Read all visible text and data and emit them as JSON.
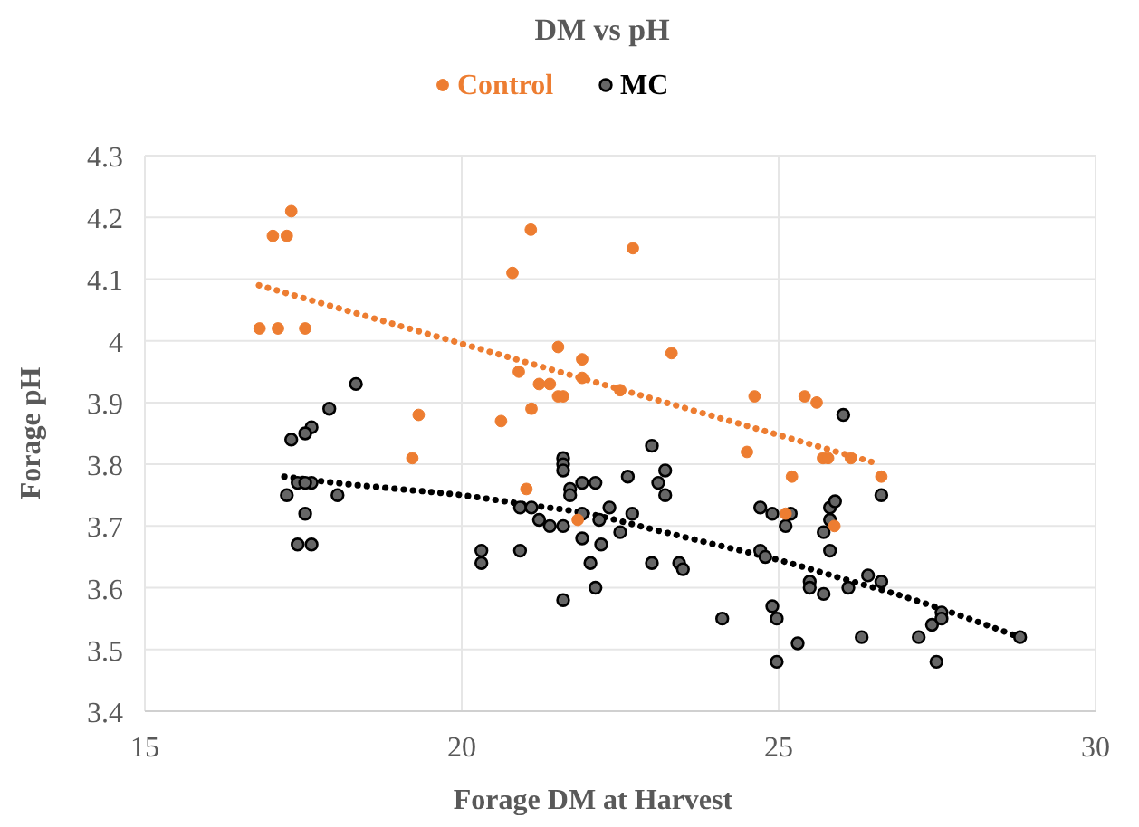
{
  "chart_data": {
    "type": "scatter",
    "title": "DM vs pH",
    "xlabel": "Forage DM at Harvest",
    "ylabel": "Forage pH",
    "xlim": [
      15,
      30
    ],
    "xticks": [
      15,
      20,
      25,
      30
    ],
    "ylim": [
      3.4,
      4.3
    ],
    "yticks": [
      {
        "value": 3.4,
        "label": "3.4"
      },
      {
        "value": 3.5,
        "label": "3.5"
      },
      {
        "value": 3.6,
        "label": "3.6"
      },
      {
        "value": 3.7,
        "label": "3.7"
      },
      {
        "value": 3.8,
        "label": "3.8"
      },
      {
        "value": 3.9,
        "label": "3.9"
      },
      {
        "value": 4,
        "label": "4"
      },
      {
        "value": 4.1,
        "label": "4.1"
      },
      {
        "value": 4.2,
        "label": "4.2"
      },
      {
        "value": 4.3,
        "label": "4.3"
      }
    ],
    "grid": true,
    "legend": "top",
    "marker": "circle",
    "series": [
      {
        "name": "Control",
        "color": "#ed7d31",
        "x": [
          17.31,
          17.02,
          17.24,
          16.81,
          17.1,
          17.53,
          19.32,
          19.22,
          21.09,
          20.8,
          22.7,
          21.52,
          21.9,
          23.31,
          20.9,
          21.22,
          21.39,
          21.52,
          21.6,
          21.9,
          22.5,
          21.1,
          20.62,
          24.62,
          24.5,
          21.02,
          21.83,
          25.41,
          25.6,
          25.21,
          25.7,
          25.78,
          26.14,
          26.62,
          25.88,
          25.11
        ],
        "values": [
          4.21,
          4.17,
          4.17,
          4.02,
          4.02,
          4.02,
          3.88,
          3.81,
          4.18,
          4.11,
          4.15,
          3.99,
          3.97,
          3.98,
          3.95,
          3.93,
          3.93,
          3.91,
          3.91,
          3.94,
          3.92,
          3.89,
          3.87,
          3.91,
          3.82,
          3.76,
          3.71,
          3.91,
          3.9,
          3.78,
          3.81,
          3.81,
          3.81,
          3.78,
          3.7,
          3.72
        ]
      },
      {
        "name": "MC",
        "color": "#000000",
        "x": [
          18.33,
          17.91,
          17.63,
          17.53,
          17.31,
          17.24,
          17.41,
          17.63,
          17.53,
          18.04,
          17.53,
          17.41,
          17.63,
          20.31,
          20.31,
          23.0,
          21.6,
          21.6,
          21.6,
          23.21,
          22.62,
          23.1,
          23.21,
          21.9,
          22.11,
          21.71,
          21.71,
          20.92,
          21.1,
          21.9,
          22.33,
          21.22,
          21.39,
          21.6,
          22.17,
          22.69,
          22.5,
          21.9,
          22.2,
          20.92,
          22.03,
          23.0,
          23.43,
          23.49,
          22.11,
          21.6,
          24.11,
          24.71,
          24.9,
          24.71,
          24.79,
          24.9,
          24.97,
          24.97,
          26.02,
          26.62,
          25.19,
          25.11,
          25.81,
          25.89,
          25.81,
          25.71,
          25.81,
          25.3,
          25.49,
          25.49,
          25.71,
          26.1,
          26.41,
          26.62,
          26.31,
          27.21,
          27.42,
          27.57,
          27.57,
          27.49,
          28.81
        ],
        "values": [
          3.93,
          3.89,
          3.86,
          3.85,
          3.84,
          3.75,
          3.77,
          3.77,
          3.77,
          3.75,
          3.72,
          3.67,
          3.67,
          3.66,
          3.64,
          3.83,
          3.81,
          3.8,
          3.79,
          3.79,
          3.78,
          3.77,
          3.75,
          3.77,
          3.77,
          3.76,
          3.75,
          3.73,
          3.73,
          3.72,
          3.73,
          3.71,
          3.7,
          3.7,
          3.71,
          3.72,
          3.69,
          3.68,
          3.67,
          3.66,
          3.64,
          3.64,
          3.64,
          3.63,
          3.6,
          3.58,
          3.55,
          3.73,
          3.72,
          3.66,
          3.65,
          3.57,
          3.55,
          3.48,
          3.88,
          3.75,
          3.72,
          3.7,
          3.73,
          3.74,
          3.71,
          3.69,
          3.66,
          3.51,
          3.61,
          3.6,
          3.59,
          3.6,
          3.62,
          3.61,
          3.52,
          3.52,
          3.54,
          3.56,
          3.55,
          3.48,
          3.52
        ]
      },
      {
        "type": "line",
        "color": "#ed7d31",
        "line_style": "dotted",
        "marker": "none",
        "x": [
          16.8,
          26.6
        ],
        "values": [
          4.09,
          3.8
        ]
      },
      {
        "type": "line",
        "color": "#000000",
        "line_style": "dotted",
        "marker": "none",
        "x": [
          17.2,
          18,
          19,
          20,
          21,
          22,
          23,
          24,
          25,
          26,
          27,
          28,
          28.8
        ],
        "values": [
          3.78,
          3.77,
          3.76,
          3.75,
          3.735,
          3.72,
          3.695,
          3.67,
          3.645,
          3.615,
          3.585,
          3.55,
          3.52
        ]
      }
    ]
  }
}
